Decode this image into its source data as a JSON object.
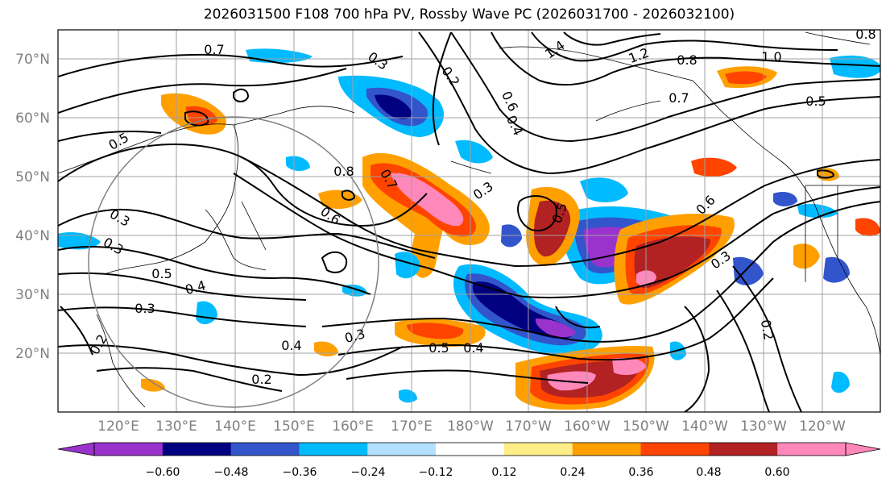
{
  "title": "2026031500 F108 700 hPa PV, Rossby Wave PC (2026031700 - 2026032100)",
  "lat_labels": [
    "70°N",
    "60°N",
    "50°N",
    "40°N",
    "30°N",
    "20°N"
  ],
  "lon_labels": [
    "120°E",
    "130°E",
    "140°E",
    "150°E",
    "160°E",
    "170°E",
    "180°W",
    "170°W",
    "160°W",
    "150°W",
    "140°W",
    "130°W",
    "120°W"
  ],
  "colorbar": {
    "ticks": [
      "−0.60",
      "−0.48",
      "−0.36",
      "−0.24",
      "−0.12",
      "0.12",
      "0.24",
      "0.36",
      "0.48",
      "0.60"
    ],
    "colors": [
      "#9933cc",
      "#000080",
      "#3355cc",
      "#00bbff",
      "#b3e0ff",
      "#ffffff",
      "#ffee88",
      "#ffa000",
      "#ff4400",
      "#b22222",
      "#ff88bb"
    ]
  },
  "contour_labels": [
    "0.7",
    "0.3",
    "0.2",
    "0.6",
    "0.4",
    "1.4",
    "1.2",
    "0.8",
    "1.0",
    "0.5",
    "0.7",
    "0.5",
    "0.3",
    "0.8",
    "0.6",
    "0.7",
    "0.3",
    "0.5",
    "0.6",
    "0.3",
    "0.3",
    "0.5",
    "0.4",
    "0.3",
    "0.3",
    "0.4",
    "0.5",
    "0.4",
    "0.2",
    "0.2",
    "0.2",
    "0.8"
  ]
}
